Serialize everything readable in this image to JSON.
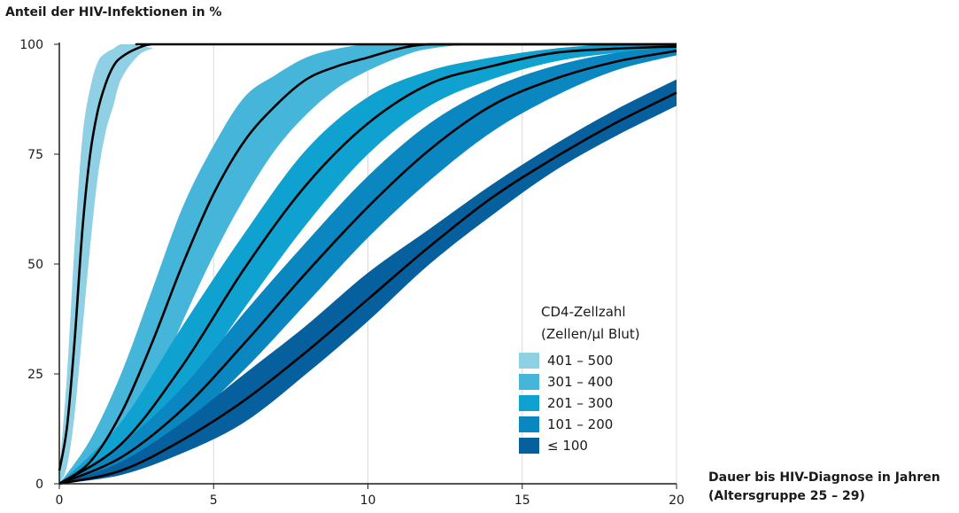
{
  "chart_data": {
    "type": "area",
    "title": "",
    "ylabel": "Anteil der HIV-Infektionen in %",
    "xlabel": "Dauer bis HIV-Diagnose in Jahren",
    "xlabel_sub": "(Altersgruppe 25 – 29)",
    "xlim": [
      0,
      20
    ],
    "ylim": [
      0,
      100
    ],
    "x_ticks": [
      "0",
      "5",
      "10",
      "15",
      "20"
    ],
    "y_ticks": [
      "0",
      "25",
      "50",
      "75",
      "100"
    ],
    "grid": "vertical",
    "legend_placement": "bottom-right",
    "legend_title_line1": "CD4-Zellzahl",
    "legend_title_line2": "(Zellen/µl Blut)",
    "series": [
      {
        "name": "401 – 500",
        "color": "#8fd0e4",
        "x": [
          0,
          0.25,
          0.5,
          0.75,
          1.0,
          1.25,
          1.5,
          1.75,
          2.0,
          2.5,
          3.0,
          4.0,
          20
        ],
        "y": [
          3,
          13,
          33,
          58,
          75,
          85,
          91,
          95,
          97,
          99,
          100,
          100,
          100
        ],
        "lower": [
          0,
          4,
          16,
          35,
          54,
          70,
          80,
          86,
          92,
          97,
          99,
          100,
          100
        ],
        "upper": [
          3,
          25,
          55,
          79,
          90,
          96,
          98,
          99,
          100,
          100,
          100,
          100,
          100
        ]
      },
      {
        "name": "301 – 400",
        "color": "#45b6da",
        "x": [
          0,
          1,
          2,
          3,
          4,
          5,
          6,
          7,
          8,
          9,
          10,
          11,
          12,
          14,
          20
        ],
        "y": [
          0,
          5,
          16,
          32,
          50,
          66,
          78,
          86,
          92,
          95,
          97,
          99,
          100,
          100,
          100
        ],
        "lower": [
          0,
          2,
          9,
          21,
          37,
          52,
          65,
          76,
          84,
          90,
          94,
          97,
          99,
          100,
          100
        ],
        "upper": [
          0,
          10,
          25,
          44,
          63,
          77,
          88,
          93,
          97,
          99,
          100,
          100,
          100,
          100,
          100
        ]
      },
      {
        "name": "201 – 300",
        "color": "#0fa1cf",
        "x": [
          0,
          2,
          4,
          6,
          8,
          10,
          12,
          14,
          16,
          18,
          20
        ],
        "y": [
          0,
          9,
          27,
          49,
          68,
          82,
          91,
          95,
          98,
          99,
          99.5
        ],
        "lower": [
          0,
          5,
          20,
          40,
          59,
          75,
          86,
          92,
          96,
          98,
          99
        ],
        "upper": [
          0,
          14,
          36,
          57,
          76,
          88,
          94,
          97,
          99,
          100,
          100
        ]
      },
      {
        "name": "101 – 200",
        "color": "#0a86c0",
        "x": [
          0,
          2,
          4,
          6,
          8,
          10,
          12,
          14,
          16,
          18,
          20
        ],
        "y": [
          0,
          6,
          17,
          32,
          48,
          63,
          76,
          86,
          92,
          96,
          98.5
        ],
        "lower": [
          0,
          4,
          13,
          26,
          41,
          56,
          69,
          80,
          88,
          94,
          97.5
        ],
        "upper": [
          0,
          9,
          22,
          39,
          55,
          70,
          82,
          90,
          95,
          98,
          99.5
        ]
      },
      {
        "name": "≤ 100",
        "color": "#05609d",
        "x": [
          0,
          2,
          4,
          6,
          8,
          10,
          12,
          14,
          16,
          18,
          20
        ],
        "y": [
          0,
          3,
          10,
          19,
          30,
          42,
          54,
          65,
          74,
          82,
          89
        ],
        "lower": [
          0,
          2,
          7,
          14,
          25,
          37,
          50,
          61,
          71,
          79,
          86
        ],
        "upper": [
          0,
          5,
          14,
          25,
          36,
          48,
          58,
          68,
          77,
          85,
          92
        ]
      }
    ]
  }
}
